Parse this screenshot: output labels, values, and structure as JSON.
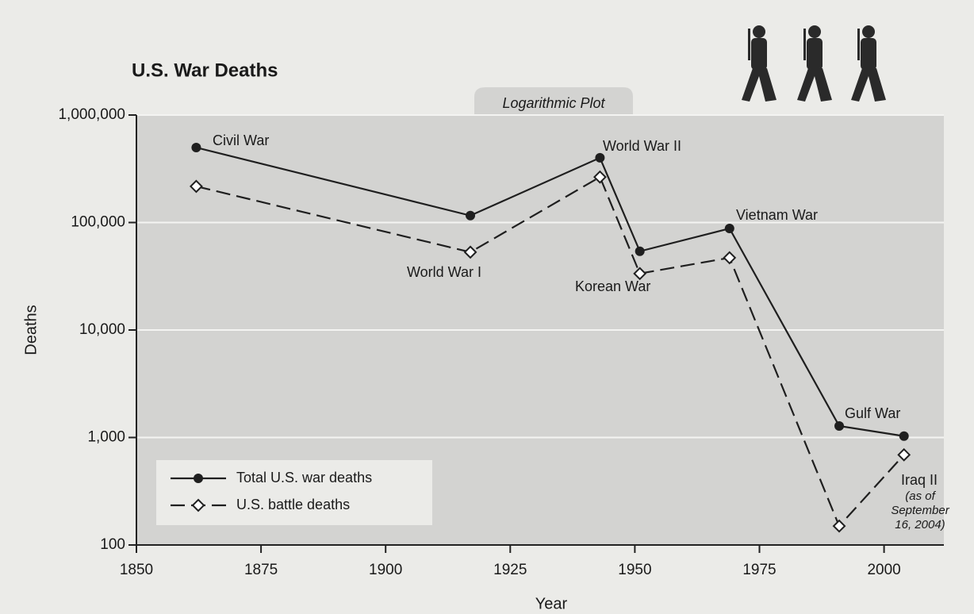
{
  "chart_data": {
    "type": "line",
    "title": "U.S. War Deaths",
    "subtitle": "Logarithmic Plot",
    "x_label": "Year",
    "y_label": "Deaths",
    "x": [
      1862,
      1917,
      1943,
      1951,
      1969,
      1991,
      2004
    ],
    "series": [
      {
        "name": "Total U.S. war deaths",
        "color": "#1f1f1f",
        "marker": "circle",
        "line_style": "solid",
        "values": [
          498000,
          116000,
          400000,
          54000,
          88000,
          1280,
          1030
        ]
      },
      {
        "name": "U.S. battle deaths",
        "color": "#1f1f1f",
        "marker": "diamond",
        "line_style": "dashed",
        "values": [
          217000,
          53000,
          265000,
          33500,
          47000,
          150,
          690
        ]
      }
    ],
    "annotations": [
      "Civil War",
      "World War I",
      "World War II",
      "Korean War",
      "Vietnam War",
      "Gulf War",
      "Iraq II"
    ],
    "note_lines": [
      "(as of",
      "September",
      "16, 2004)"
    ],
    "xlim": [
      1850,
      2012
    ],
    "xticks": [
      1850,
      1875,
      1900,
      1925,
      1950,
      1975,
      2000
    ],
    "ylim": [
      100,
      1000000
    ],
    "yticks": [
      {
        "value": 100,
        "label": "100"
      },
      {
        "value": 1000,
        "label": "1,000"
      },
      {
        "value": 10000,
        "label": "10,000"
      },
      {
        "value": 100000,
        "label": "100,000"
      },
      {
        "value": 1000000,
        "label": "1,000,000"
      }
    ],
    "log_y": true,
    "grid": true,
    "legend": "lower left"
  }
}
